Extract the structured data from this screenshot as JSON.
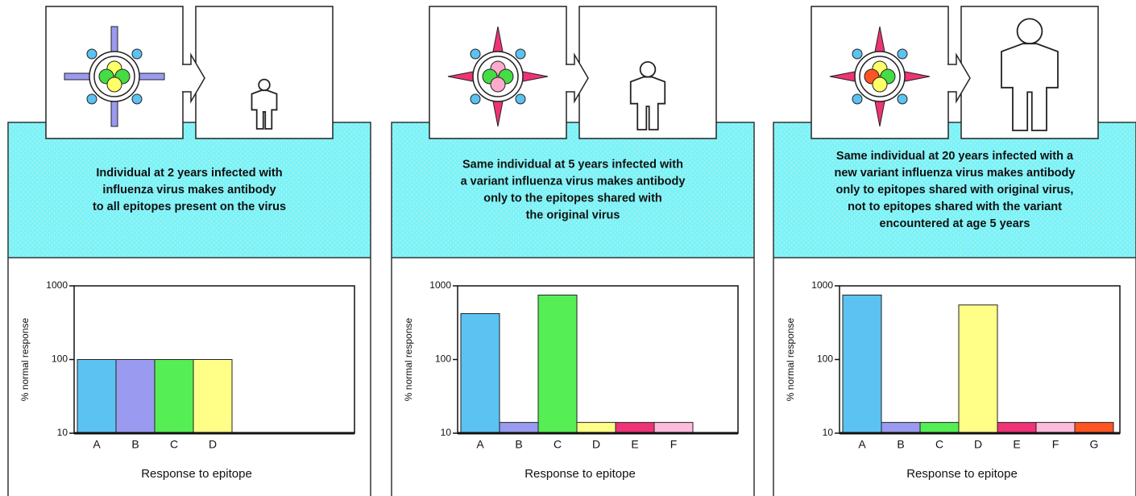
{
  "chart_data": [
    {
      "type": "bar",
      "caption": [
        "Individual at 2 years infected with",
        "influenza virus makes antibody",
        "to all epitopes present on the virus"
      ],
      "categories": [
        "A",
        "B",
        "C",
        "D"
      ],
      "values": [
        100,
        100,
        100,
        100
      ],
      "colors": [
        "#5cc2f2",
        "#9a9af0",
        "#55ee55",
        "#ffff88"
      ],
      "ylabel": "% normal response",
      "xlabel": "Response to epitope",
      "log_scale": true,
      "ylim": [
        10,
        1000
      ],
      "yticks": [
        10,
        100,
        1000
      ]
    },
    {
      "type": "bar",
      "caption": [
        "Same individual at 5 years infected with",
        "a variant influenza virus makes antibody",
        "only to the epitopes shared with",
        "the original virus"
      ],
      "categories": [
        "A",
        "B",
        "C",
        "D",
        "E",
        "F"
      ],
      "values": [
        420,
        14,
        750,
        14,
        14,
        14
      ],
      "colors": [
        "#5cc2f2",
        "#9a9af0",
        "#55ee55",
        "#ffff88",
        "#ee3377",
        "#ffbbdd"
      ],
      "ylabel": "% normal response",
      "xlabel": "Response to epitope",
      "log_scale": true,
      "ylim": [
        10,
        1000
      ],
      "yticks": [
        10,
        100,
        1000
      ]
    },
    {
      "type": "bar",
      "caption": [
        "Same individual at 20 years infected with a",
        "new variant influenza virus makes antibody",
        "only to epitopes shared with original virus,",
        "not to epitopes shared with the variant",
        "encountered at age 5 years"
      ],
      "categories": [
        "A",
        "B",
        "C",
        "D",
        "E",
        "F",
        "G"
      ],
      "values": [
        750,
        14,
        14,
        550,
        14,
        14,
        14
      ],
      "colors": [
        "#5cc2f2",
        "#9a9af0",
        "#55ee55",
        "#ffff88",
        "#ee3377",
        "#ffbbdd",
        "#ff5522"
      ],
      "ylabel": "% normal response",
      "xlabel": "Response to epitope",
      "log_scale": true,
      "ylim": [
        10,
        1000
      ],
      "yticks": [
        10,
        100,
        1000
      ]
    }
  ]
}
